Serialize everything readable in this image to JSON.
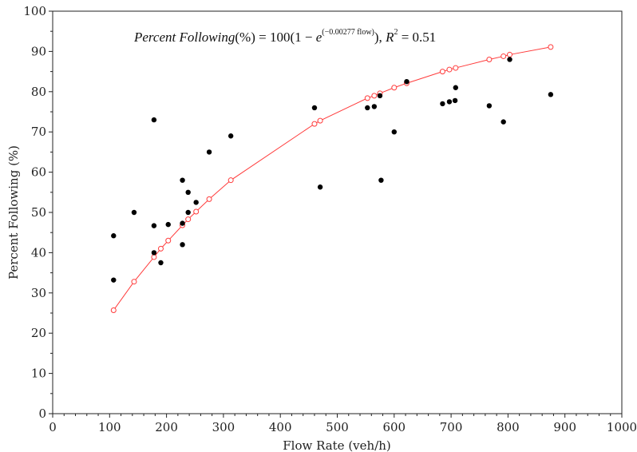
{
  "chart_data": {
    "type": "scatter",
    "xlabel": "Flow Rate (veh/h)",
    "ylabel": "Percent Following (%)",
    "xlim": [
      0,
      1000
    ],
    "ylim": [
      0,
      100
    ],
    "xticks": [
      "0",
      "100",
      "200",
      "300",
      "400",
      "500",
      "600",
      "700",
      "800",
      "900",
      "1000"
    ],
    "yticks": [
      "0",
      "10",
      "20",
      "30",
      "40",
      "50",
      "60",
      "70",
      "80",
      "90",
      "100"
    ],
    "grid": false,
    "legend": "none",
    "annotation": {
      "lhs": "Percent Following",
      "unit": "(%)",
      "eq1": " = 100(1 − ",
      "e": "e",
      "exponent": "(−0.00277 flow)",
      "eq2": "), ",
      "r2_label": "R",
      "r2_sup": "2",
      "r2_value": " = 0.51"
    },
    "series": [
      {
        "kind": "observed",
        "color": "#000000",
        "x": [
          107,
          107,
          143,
          178,
          178,
          178,
          190,
          203,
          228,
          228,
          228,
          238,
          238,
          252,
          275,
          313,
          460,
          470,
          553,
          565,
          575,
          577,
          600,
          622,
          685,
          697,
          707,
          708,
          767,
          792,
          803,
          875
        ],
        "y": [
          44.2,
          33.2,
          50,
          73,
          46.7,
          40,
          37.5,
          47,
          58,
          47.3,
          42,
          55,
          50,
          52.5,
          65,
          69,
          76,
          56.3,
          76,
          76.3,
          79,
          58,
          70,
          82.5,
          77,
          77.5,
          77.8,
          81,
          76.5,
          72.5,
          88,
          79.3
        ]
      },
      {
        "kind": "fitted",
        "color": "#ff3b3b",
        "x": [
          107,
          143,
          178,
          190,
          203,
          228,
          238,
          252,
          275,
          313,
          460,
          470,
          553,
          565,
          575,
          600,
          622,
          685,
          697,
          708,
          767,
          792,
          803,
          875
        ],
        "y": [
          25.7,
          32.8,
          38.9,
          41.0,
          43.0,
          46.8,
          48.3,
          50.2,
          53.3,
          58.0,
          72.0,
          72.8,
          78.4,
          79.0,
          79.6,
          81.0,
          82.1,
          85.0,
          85.5,
          85.9,
          88.0,
          88.8,
          89.2,
          91.1
        ]
      }
    ]
  }
}
